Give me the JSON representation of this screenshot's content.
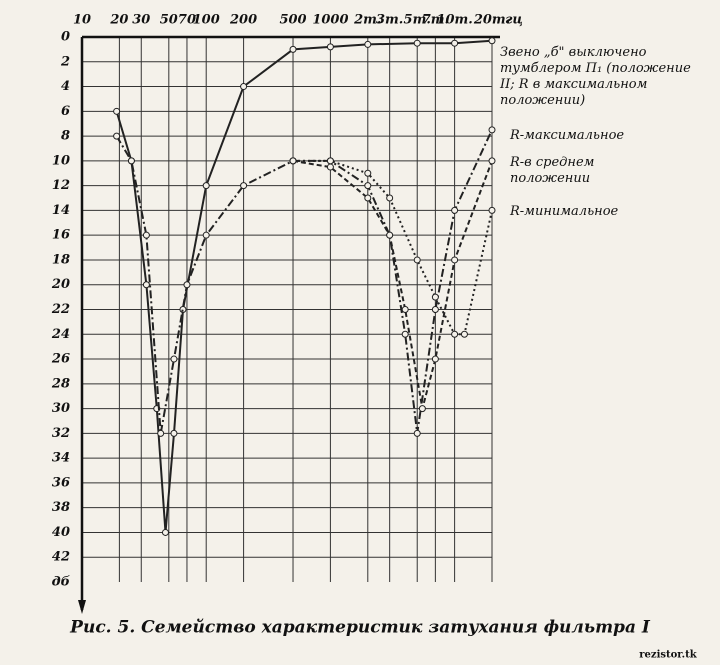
{
  "chart_data": {
    "type": "line",
    "caption": "Рис. 5. Семейство характеристик затухания фильтра I",
    "watermark": "rezistor.tk",
    "x_unit": "гц",
    "y_unit": "дб",
    "xscale": "log",
    "y_inverted": true,
    "grid": true,
    "markers": true,
    "xlim": [
      10,
      20000
    ],
    "xticks": [
      10,
      20,
      30,
      50,
      70,
      100,
      200,
      500,
      1000,
      {
        "value": 2000,
        "label": "2т."
      },
      {
        "value": 3000,
        "label": "3т."
      },
      {
        "value": 5000,
        "label": "5т."
      },
      {
        "value": 7000,
        "label": "7т."
      },
      {
        "value": 10000,
        "label": "10т."
      },
      {
        "value": 20000,
        "label": "20т."
      }
    ],
    "ylim": [
      0,
      44
    ],
    "yticks": [
      0,
      2,
      4,
      6,
      8,
      10,
      12,
      14,
      16,
      18,
      20,
      22,
      24,
      26,
      28,
      30,
      32,
      34,
      36,
      38,
      40,
      42
    ],
    "series": [
      {
        "name": "Звено „б\" выключено тумблером П₁ (положение II; R в максимальном положении)",
        "color": "#222",
        "dash": "none",
        "x": [
          19,
          25,
          33,
          40,
          47,
          55,
          65,
          100,
          200,
          500,
          1000,
          2000,
          5000,
          10000,
          20000
        ],
        "values": [
          6,
          10,
          20,
          30,
          40,
          32,
          22,
          12,
          4,
          1,
          0.8,
          0.6,
          0.5,
          0.5,
          0.3
        ]
      },
      {
        "name": "R-максимальное",
        "color": "#222",
        "dash": "8 3 2 3",
        "x": [
          19,
          25,
          33,
          43,
          55,
          70,
          100,
          200,
          500,
          1000,
          2000,
          3000,
          4000,
          5000,
          7000,
          10000,
          20000
        ],
        "values": [
          8,
          10,
          16,
          32,
          26,
          20,
          16,
          12,
          10,
          10,
          12,
          16,
          24,
          32,
          22,
          14,
          7.5
        ]
      },
      {
        "name": "R-в среднем положении",
        "color": "#222",
        "dash": "5 3",
        "x": [
          500,
          1000,
          2000,
          3000,
          4000,
          5500,
          7000,
          10000,
          20000
        ],
        "values": [
          10,
          10.5,
          13,
          16,
          22,
          30,
          26,
          18,
          10
        ]
      },
      {
        "name": "R-минимальное",
        "color": "#222",
        "dash": "2 3",
        "x": [
          500,
          1000,
          2000,
          3000,
          5000,
          7000,
          10000,
          12000,
          20000
        ],
        "values": [
          10,
          10,
          11,
          13,
          18,
          21,
          24,
          24,
          14
        ]
      }
    ]
  }
}
